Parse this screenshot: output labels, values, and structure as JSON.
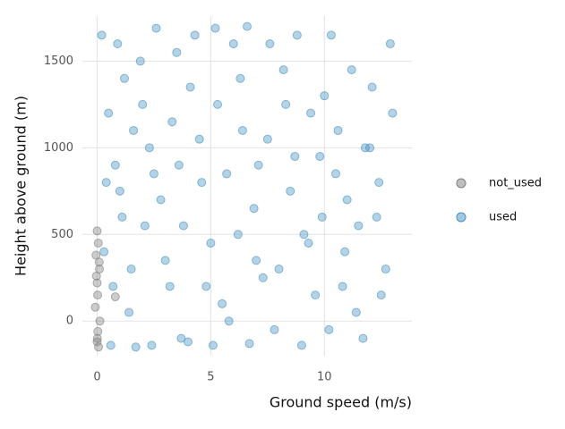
{
  "chart_data": {
    "type": "scatter",
    "x_label": "Ground speed (m/s)",
    "y_label": "Height above ground (m)",
    "xlim": [
      -0.65,
      13.85
    ],
    "ylim": [
      -200,
      1760
    ],
    "xticks": [
      0,
      5,
      10
    ],
    "yticks": [
      0,
      500,
      1000,
      1500
    ],
    "grid": true,
    "legend": "right",
    "series": [
      {
        "name": "not_used",
        "color": "#7f7f7f",
        "x": [
          0,
          0.05,
          -0.05,
          0.1,
          0,
          0.02,
          -0.08,
          0.12,
          0.03,
          0,
          0.06,
          -0.03,
          0.09,
          0.01,
          0.8
        ],
        "values": [
          520,
          450,
          380,
          300,
          220,
          150,
          80,
          0,
          -60,
          -120,
          -150,
          260,
          340,
          -100,
          140
        ]
      },
      {
        "name": "used",
        "color": "#4590c0",
        "x": [
          0.2,
          0.5,
          0.8,
          1.1,
          1.5,
          1.9,
          2.3,
          2.8,
          3.2,
          3.7,
          4.1,
          4.6,
          5.0,
          5.5,
          6.0,
          6.4,
          6.9,
          7.3,
          7.8,
          8.2,
          8.7,
          9.1,
          9.6,
          10.0,
          10.5,
          10.9,
          11.4,
          11.8,
          12.3,
          12.7,
          0.3,
          0.9,
          1.4,
          2.0,
          2.6,
          3.0,
          3.5,
          4.0,
          4.5,
          5.2,
          5.8,
          6.3,
          6.7,
          7.1,
          7.6,
          8.0,
          8.5,
          9.0,
          9.4,
          9.9,
          10.3,
          10.8,
          11.2,
          11.7,
          12.1,
          12.5,
          12.9,
          0.6,
          1.7,
          2.4,
          0.4,
          0.7,
          1.2,
          1.6,
          2.1,
          2.5,
          3.3,
          3.8,
          4.3,
          4.8,
          5.3,
          5.7,
          6.2,
          6.6,
          7.0,
          7.5,
          8.3,
          8.8,
          9.3,
          9.8,
          10.2,
          10.6,
          11.0,
          11.5,
          12.0,
          12.4,
          13.0,
          1.0,
          3.6,
          5.1
        ],
        "values": [
          1650,
          1200,
          900,
          600,
          300,
          1500,
          1000,
          700,
          200,
          -100,
          1350,
          800,
          450,
          100,
          1600,
          1100,
          650,
          250,
          -50,
          1450,
          950,
          500,
          150,
          1300,
          850,
          400,
          50,
          1000,
          600,
          300,
          400,
          1600,
          50,
          1250,
          1690,
          350,
          1550,
          -120,
          1050,
          1690,
          0,
          1400,
          -130,
          900,
          1600,
          300,
          750,
          -140,
          1200,
          600,
          1650,
          200,
          1450,
          -100,
          1350,
          150,
          1600,
          -140,
          -150,
          -140,
          800,
          200,
          1400,
          1100,
          550,
          850,
          1150,
          550,
          1650,
          200,
          1250,
          850,
          500,
          1700,
          350,
          1050,
          1250,
          1650,
          450,
          950,
          -50,
          1100,
          700,
          550,
          1000,
          800,
          1200,
          750,
          900,
          -140
        ]
      }
    ]
  }
}
